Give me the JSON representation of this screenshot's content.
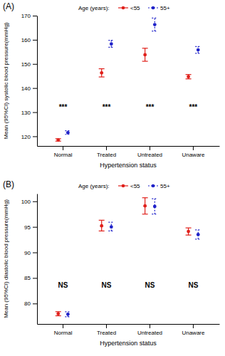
{
  "chart_data": [
    {
      "type": "scatter",
      "title": "(A)",
      "legend_title": "Age (years):",
      "legend": "top",
      "x_label": "Hypertension status",
      "y_label": "Mean (95%CI) systolic blood pressure(mmHg)",
      "categories": [
        "Normal",
        "Treated",
        "Untreated",
        "Unaware"
      ],
      "annotations": [
        "***",
        "***",
        "***",
        "***"
      ],
      "ylim": [
        116,
        170
      ],
      "yticks": [
        120,
        130,
        140,
        150,
        160,
        170
      ],
      "series": [
        {
          "name": "<55",
          "color": "#e0201b",
          "marker": "circle",
          "line_style": "solid",
          "values": [
            118.5,
            146.3,
            153.8,
            144.7
          ],
          "ci_low": [
            118.0,
            144.6,
            151.1,
            143.8
          ],
          "ci_high": [
            119.0,
            148.0,
            156.5,
            145.6
          ]
        },
        {
          "name": "55+",
          "color": "#1f22c9",
          "marker": "circle",
          "line_style": "dashed",
          "values": [
            121.5,
            158.3,
            166.3,
            155.8
          ],
          "ci_low": [
            120.8,
            156.9,
            163.6,
            154.4
          ],
          "ci_high": [
            122.3,
            159.8,
            169.0,
            157.2
          ]
        }
      ]
    },
    {
      "type": "scatter",
      "title": "(B)",
      "legend_title": "Age (years):",
      "legend": "top",
      "x_label": "Hypertension status",
      "y_label": "Mean (95%CI) diastolic blood pressure(mmHg)",
      "categories": [
        "Normal",
        "Treated",
        "Untreated",
        "Unaware"
      ],
      "annotations": [
        "NS",
        "NS",
        "NS",
        "NS"
      ],
      "ylim": [
        76,
        101.5
      ],
      "yticks": [
        80,
        85,
        90,
        95,
        100
      ],
      "series": [
        {
          "name": "<55",
          "color": "#e0201b",
          "marker": "circle",
          "line_style": "solid",
          "values": [
            78.0,
            95.2,
            99.1,
            94.1
          ],
          "ci_low": [
            77.6,
            94.2,
            97.5,
            93.4
          ],
          "ci_high": [
            78.4,
            96.3,
            100.7,
            94.8
          ]
        },
        {
          "name": "55+",
          "color": "#1f22c9",
          "marker": "circle",
          "line_style": "dashed",
          "values": [
            77.9,
            95.0,
            99.0,
            93.5
          ],
          "ci_low": [
            77.4,
            94.2,
            97.5,
            92.6
          ],
          "ci_high": [
            78.4,
            95.9,
            100.5,
            94.4
          ]
        }
      ]
    }
  ]
}
